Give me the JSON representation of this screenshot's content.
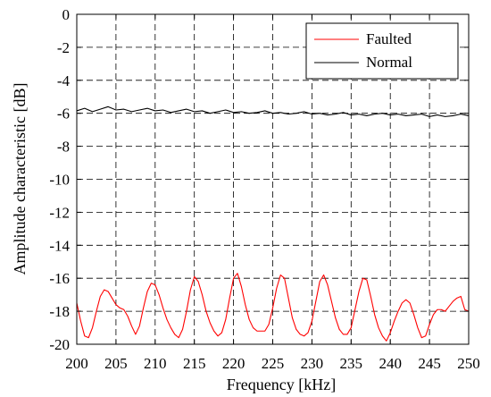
{
  "chart_data": {
    "type": "line",
    "xlabel": "Frequency [kHz]",
    "ylabel": "Amplitude characteristic [dB]",
    "xlim": [
      200,
      250
    ],
    "ylim": [
      -20,
      0
    ],
    "xticks": [
      200,
      205,
      210,
      215,
      220,
      225,
      230,
      235,
      240,
      245,
      250
    ],
    "yticks": [
      0,
      -2,
      -4,
      -6,
      -8,
      -10,
      -12,
      -14,
      -16,
      -18,
      -20
    ],
    "grid": true,
    "legend_position": "top-right",
    "series": [
      {
        "name": "Faulted",
        "color": "#ff0000",
        "x": [
          200.0,
          200.5,
          201.0,
          201.5,
          202.0,
          202.5,
          203.0,
          203.5,
          204.0,
          204.5,
          205.0,
          205.5,
          206.0,
          206.5,
          207.0,
          207.5,
          208.0,
          208.5,
          209.0,
          209.5,
          210.0,
          210.5,
          211.0,
          211.5,
          212.0,
          212.5,
          213.0,
          213.5,
          214.0,
          214.5,
          215.0,
          215.5,
          216.0,
          216.5,
          217.0,
          217.5,
          218.0,
          218.5,
          219.0,
          219.5,
          220.0,
          220.5,
          221.0,
          221.5,
          222.0,
          222.5,
          223.0,
          223.5,
          224.0,
          224.5,
          225.0,
          225.5,
          226.0,
          226.5,
          227.0,
          227.5,
          228.0,
          228.5,
          229.0,
          229.5,
          230.0,
          230.5,
          231.0,
          231.5,
          232.0,
          232.5,
          233.0,
          233.5,
          234.0,
          234.5,
          235.0,
          235.5,
          236.0,
          236.5,
          237.0,
          237.5,
          238.0,
          238.5,
          239.0,
          239.5,
          240.0,
          240.5,
          241.0,
          241.5,
          242.0,
          242.5,
          243.0,
          243.5,
          244.0,
          244.5,
          245.0,
          245.5,
          246.0,
          246.5,
          247.0,
          247.5,
          248.0,
          248.5,
          249.0,
          249.5,
          250.0
        ],
        "y": [
          -17.5,
          -18.6,
          -19.5,
          -19.6,
          -19.0,
          -18.0,
          -17.1,
          -16.7,
          -16.8,
          -17.2,
          -17.6,
          -17.8,
          -17.9,
          -18.3,
          -18.9,
          -19.4,
          -18.9,
          -17.8,
          -16.8,
          -16.3,
          -16.4,
          -17.0,
          -17.8,
          -18.5,
          -19.0,
          -19.4,
          -19.6,
          -19.1,
          -18.0,
          -16.7,
          -15.9,
          -16.2,
          -17.0,
          -18.0,
          -18.7,
          -19.2,
          -19.5,
          -19.3,
          -18.5,
          -17.2,
          -16.0,
          -15.7,
          -16.5,
          -17.6,
          -18.5,
          -19.0,
          -19.2,
          -19.2,
          -19.2,
          -18.8,
          -17.8,
          -16.6,
          -15.8,
          -16.0,
          -17.2,
          -18.4,
          -19.1,
          -19.4,
          -19.5,
          -19.3,
          -18.6,
          -17.4,
          -16.2,
          -15.8,
          -16.4,
          -17.4,
          -18.4,
          -19.1,
          -19.4,
          -19.4,
          -19.0,
          -17.9,
          -16.8,
          -16.0,
          -16.1,
          -17.1,
          -18.2,
          -19.0,
          -19.5,
          -19.8,
          -19.3,
          -18.6,
          -18.0,
          -17.5,
          -17.3,
          -17.5,
          -18.2,
          -19.0,
          -19.6,
          -19.5,
          -18.8,
          -18.2,
          -17.9,
          -17.9,
          -18.0,
          -17.7,
          -17.4,
          -17.2,
          -17.1,
          -17.9,
          -18.0
        ]
      },
      {
        "name": "Normal",
        "color": "#000000",
        "x": [
          200.0,
          201.0,
          202.0,
          203.0,
          204.0,
          205.0,
          206.0,
          207.0,
          208.0,
          209.0,
          210.0,
          211.0,
          212.0,
          213.0,
          214.0,
          215.0,
          216.0,
          217.0,
          218.0,
          219.0,
          220.0,
          221.0,
          222.0,
          223.0,
          224.0,
          225.0,
          226.0,
          227.0,
          228.0,
          229.0,
          230.0,
          231.0,
          232.0,
          233.0,
          234.0,
          235.0,
          236.0,
          237.0,
          238.0,
          239.0,
          240.0,
          241.0,
          242.0,
          243.0,
          244.0,
          245.0,
          246.0,
          247.0,
          248.0,
          249.0,
          250.0
        ],
        "y": [
          -5.85,
          -5.7,
          -5.9,
          -5.75,
          -5.6,
          -5.8,
          -5.75,
          -5.9,
          -5.8,
          -5.7,
          -5.85,
          -5.8,
          -5.95,
          -5.85,
          -5.75,
          -5.9,
          -5.85,
          -6.0,
          -5.9,
          -5.8,
          -5.95,
          -5.9,
          -6.0,
          -5.95,
          -5.85,
          -6.0,
          -5.95,
          -6.05,
          -6.0,
          -5.9,
          -6.05,
          -6.0,
          -6.1,
          -6.05,
          -5.95,
          -6.1,
          -6.05,
          -6.15,
          -6.05,
          -6.0,
          -6.1,
          -6.05,
          -6.15,
          -6.1,
          -6.05,
          -6.2,
          -6.1,
          -6.2,
          -6.15,
          -6.05,
          -6.15
        ]
      }
    ]
  }
}
